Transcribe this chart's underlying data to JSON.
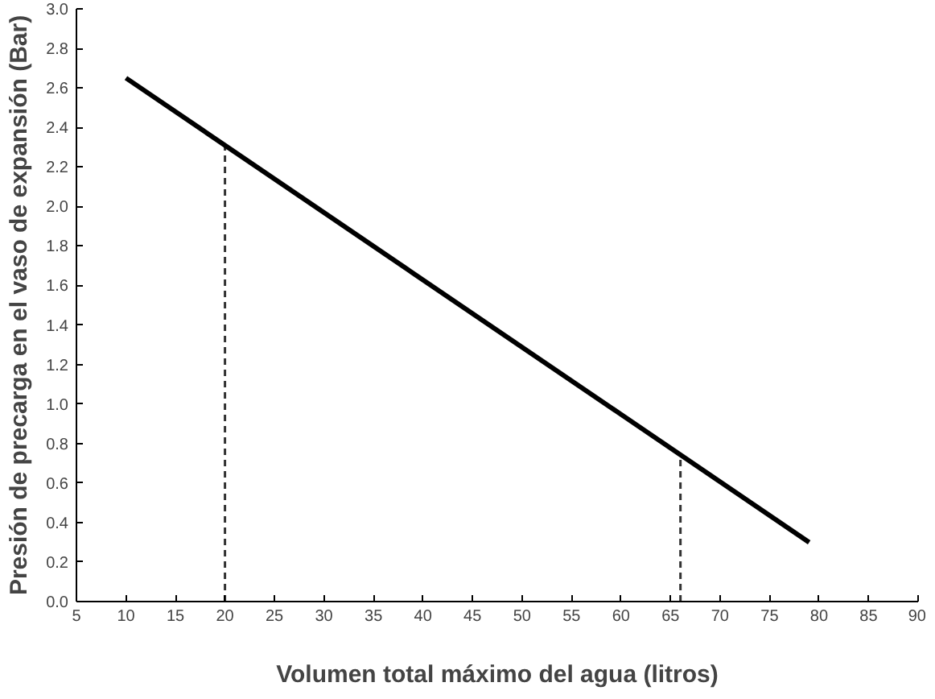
{
  "chart_data": {
    "type": "line",
    "xlabel": "Volumen total máximo del agua (litros)",
    "ylabel": "Presión de precarga en el vaso de expansión (Bar)",
    "xlim": [
      5,
      90
    ],
    "xticks": [
      5,
      10,
      15,
      20,
      25,
      30,
      35,
      40,
      45,
      50,
      55,
      60,
      65,
      70,
      75,
      80,
      85,
      90
    ],
    "ylim": [
      0,
      3.0
    ],
    "yticks": [
      {
        "value": 0,
        "label": "0.0"
      },
      0.2,
      0.4,
      0.6,
      0.8,
      {
        "value": 1,
        "label": "1.0"
      },
      1.2,
      1.4,
      1.6,
      1.8,
      {
        "value": 2,
        "label": "2.0"
      },
      2.2,
      2.4,
      2.6,
      2.8,
      {
        "value": 3,
        "label": "3.0"
      }
    ],
    "grid": false,
    "marker": "none",
    "ref_lines": [
      {
        "axis": "x",
        "value": 20,
        "color": "#333333",
        "line_style": "dashed"
      },
      {
        "axis": "x",
        "value": 66,
        "color": "#333333",
        "line_style": "dashed"
      }
    ],
    "series": [
      {
        "x": [
          10,
          79
        ],
        "values": [
          2.65,
          0.3
        ],
        "color": "#000000",
        "line_style": "solid"
      }
    ]
  }
}
